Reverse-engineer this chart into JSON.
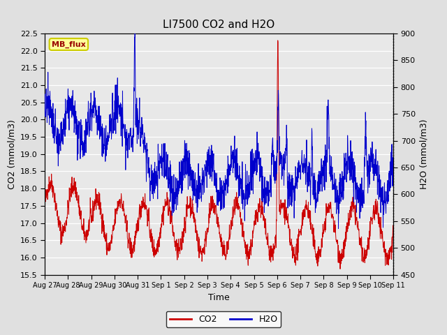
{
  "title": "LI7500 CO2 and H2O",
  "xlabel": "Time",
  "ylabel_left": "CO2 (mmol/m3)",
  "ylabel_right": "H2O (mmol/m3)",
  "co2_ylim": [
    15.5,
    22.5
  ],
  "h2o_ylim": [
    450,
    900
  ],
  "co2_color": "#cc0000",
  "h2o_color": "#0000cc",
  "fig_bg_color": "#e0e0e0",
  "plot_bg_color": "#e8e8e8",
  "annotation_text": "MB_flux",
  "annotation_bg": "#ffff99",
  "annotation_border": "#cccc00",
  "annotation_text_color": "#990000",
  "legend_co2": "CO2",
  "legend_h2o": "H2O",
  "xtick_labels": [
    "Aug 27",
    "Aug 28",
    "Aug 29",
    "Aug 30",
    "Aug 31",
    "Sep 1",
    "Sep 2",
    "Sep 3",
    "Sep 4",
    "Sep 5",
    "Sep 6",
    "Sep 7",
    "Sep 8",
    "Sep 9",
    "Sep 10",
    "Sep 11"
  ],
  "co2_yticks": [
    15.5,
    16.0,
    16.5,
    17.0,
    17.5,
    18.0,
    18.5,
    19.0,
    19.5,
    20.0,
    20.5,
    21.0,
    21.5,
    22.0,
    22.5
  ],
  "h2o_yticks": [
    450,
    500,
    550,
    600,
    650,
    700,
    750,
    800,
    850,
    900
  ],
  "seed": 42,
  "n_points": 1600
}
